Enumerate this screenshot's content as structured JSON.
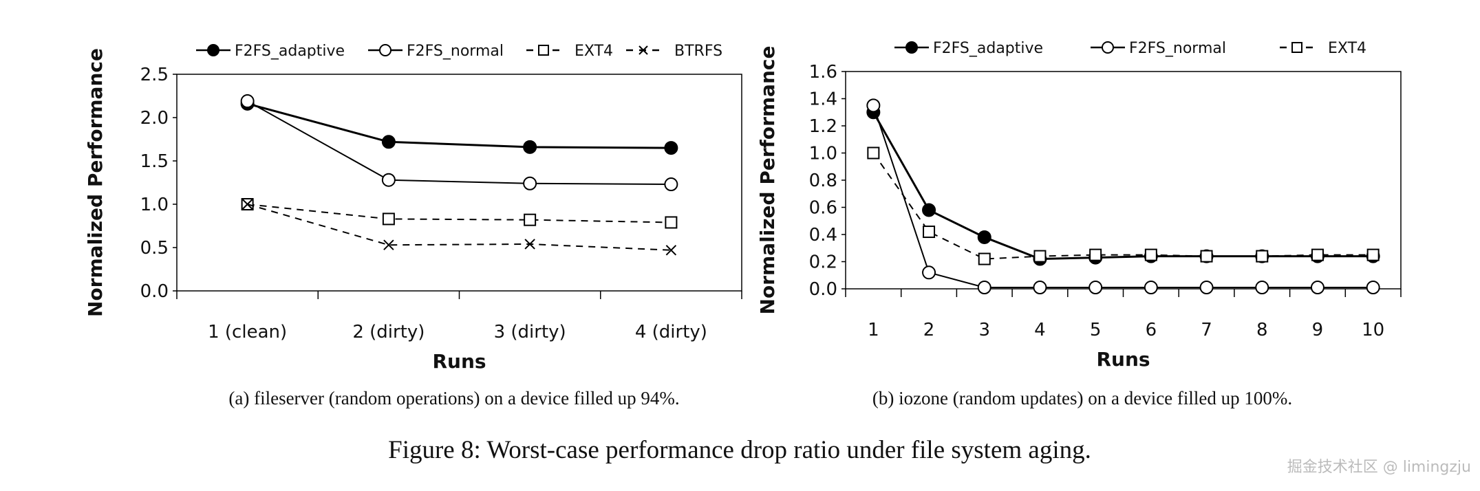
{
  "chart_data": [
    {
      "type": "line",
      "xlabel": "Runs",
      "ylabel": "Normalized Performance",
      "categories": [
        "1 (clean)",
        "2 (dirty)",
        "3 (dirty)",
        "4 (dirty)"
      ],
      "ylim": [
        0,
        2.5
      ],
      "yticks": [
        "0.0",
        "0.5",
        "1.0",
        "1.5",
        "2.0",
        "2.5"
      ],
      "grid": false,
      "legend_position": "top",
      "series": [
        {
          "name": "F2FS_adaptive",
          "marker": "filled-circle",
          "dash": false,
          "values": [
            2.16,
            1.72,
            1.66,
            1.65
          ]
        },
        {
          "name": "F2FS_normal",
          "marker": "open-circle",
          "dash": false,
          "values": [
            2.19,
            1.28,
            1.24,
            1.23
          ]
        },
        {
          "name": "EXT4",
          "marker": "open-square",
          "dash": true,
          "values": [
            1.0,
            0.83,
            0.82,
            0.79
          ]
        },
        {
          "name": "BTRFS",
          "marker": "cross",
          "dash": true,
          "values": [
            1.0,
            0.53,
            0.54,
            0.47
          ]
        }
      ],
      "caption": "(a)  fileserver (random operations) on a device filled up 94%."
    },
    {
      "type": "line",
      "xlabel": "Runs",
      "ylabel": "Normalized Performance",
      "categories": [
        "1",
        "2",
        "3",
        "4",
        "5",
        "6",
        "7",
        "8",
        "9",
        "10"
      ],
      "ylim": [
        0,
        1.6
      ],
      "yticks": [
        "0.0",
        "0.2",
        "0.4",
        "0.6",
        "0.8",
        "1.0",
        "1.2",
        "1.4",
        "1.6"
      ],
      "grid": false,
      "legend_position": "top",
      "series": [
        {
          "name": "F2FS_adaptive",
          "marker": "filled-circle",
          "dash": false,
          "values": [
            1.3,
            0.58,
            0.38,
            0.22,
            0.23,
            0.24,
            0.24,
            0.24,
            0.24,
            0.24
          ]
        },
        {
          "name": "F2FS_normal",
          "marker": "open-circle",
          "dash": false,
          "values": [
            1.35,
            0.12,
            0.01,
            0.01,
            0.01,
            0.01,
            0.01,
            0.01,
            0.01,
            0.01
          ]
        },
        {
          "name": "EXT4",
          "marker": "open-square",
          "dash": true,
          "values": [
            1.0,
            0.42,
            0.22,
            0.24,
            0.25,
            0.25,
            0.24,
            0.24,
            0.25,
            0.25
          ]
        }
      ],
      "caption": "(b)  iozone (random updates) on a device filled up 100%."
    }
  ],
  "figure_caption": "Figure 8: Worst-case performance drop ratio under file system aging.",
  "watermark": "掘金技术社区 @ limingzju"
}
